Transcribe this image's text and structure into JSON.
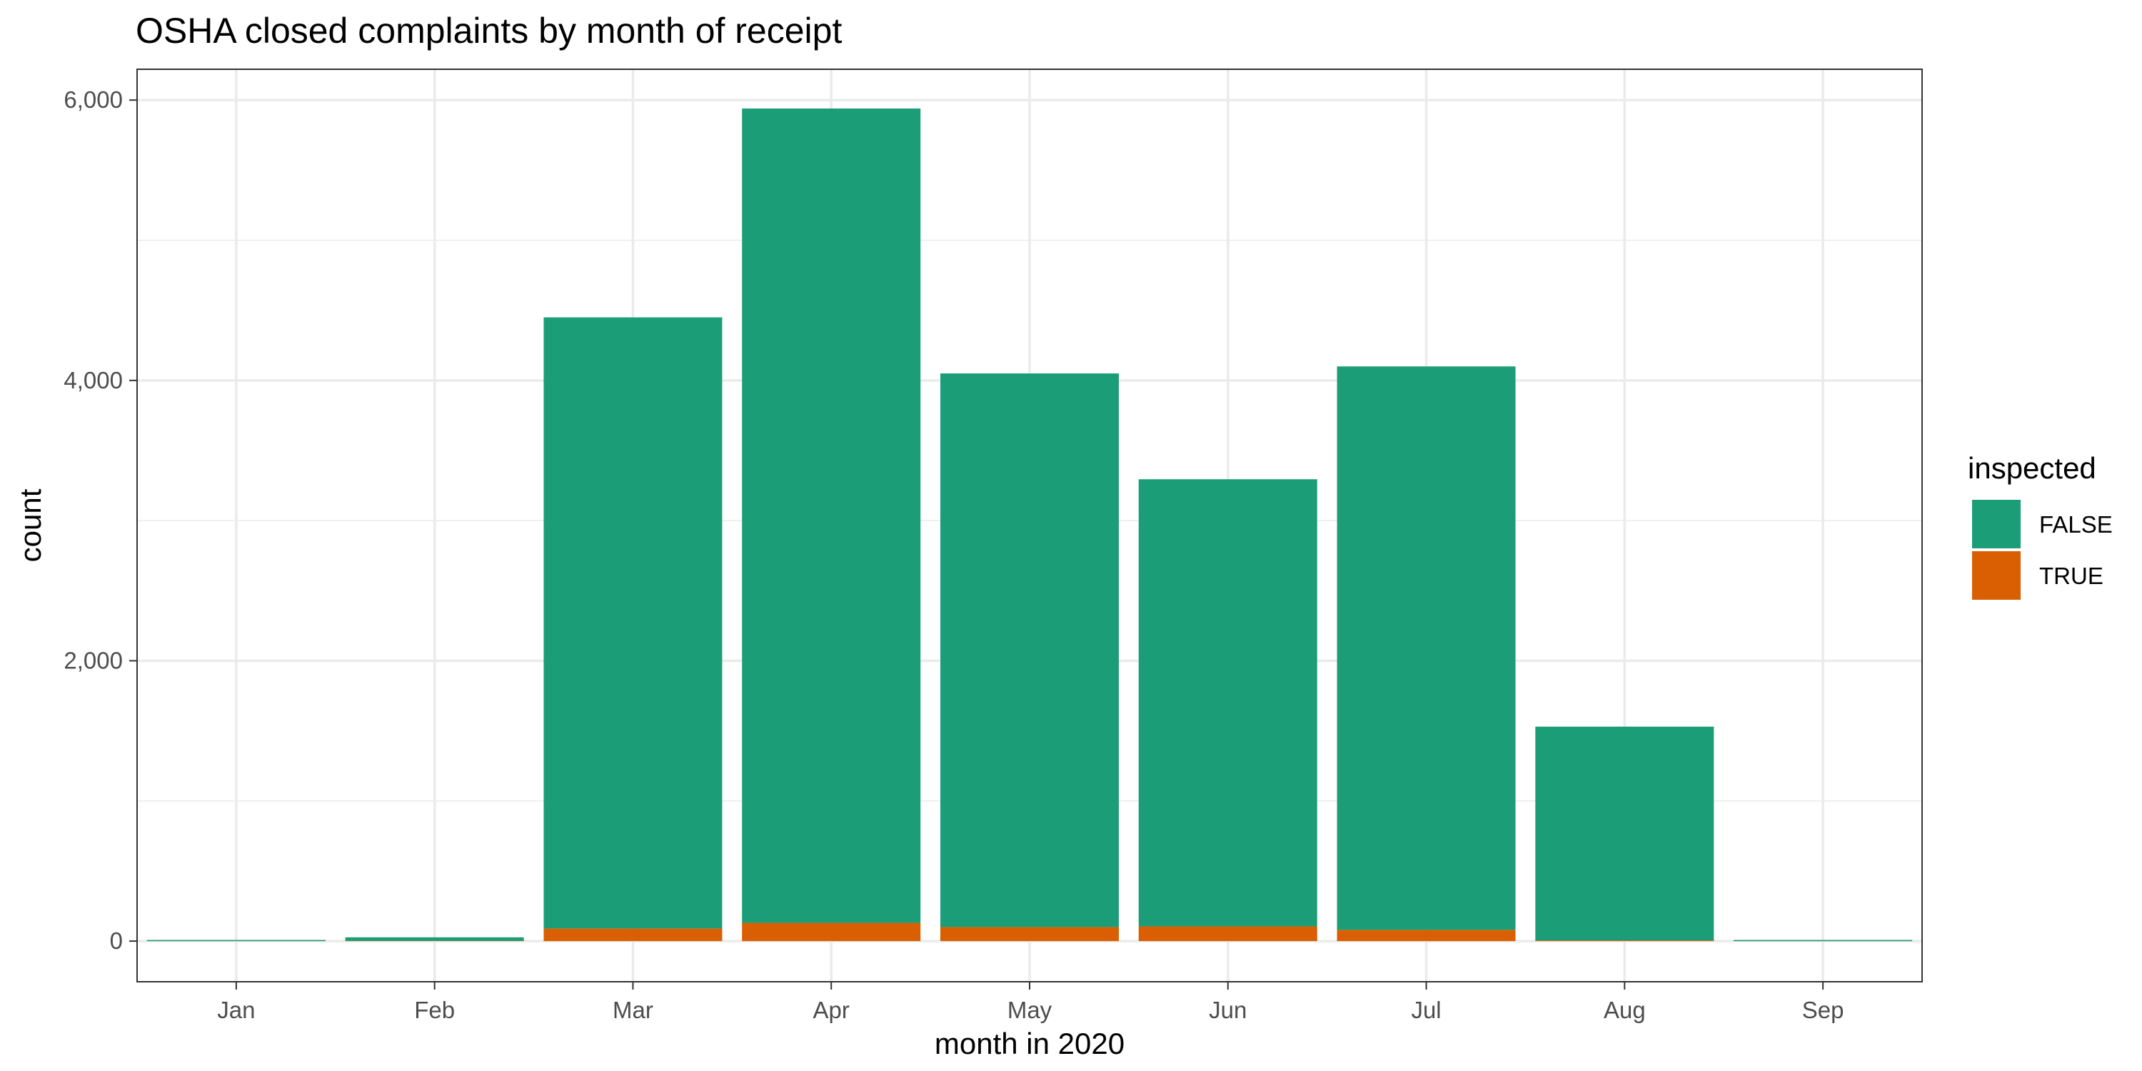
{
  "chart_data": {
    "type": "bar",
    "stacked": true,
    "title": "OSHA closed complaints by month of receipt",
    "xlabel": "month in 2020",
    "ylabel": "count",
    "categories": [
      "Jan",
      "Feb",
      "Mar",
      "Apr",
      "May",
      "Jun",
      "Jul",
      "Aug",
      "Sep"
    ],
    "series": [
      {
        "name": "FALSE",
        "color": "#1b9e77",
        "values": [
          5,
          25,
          4360,
          5810,
          3950,
          3190,
          4020,
          1525,
          5
        ]
      },
      {
        "name": "TRUE",
        "color": "#d95f02",
        "values": [
          0,
          2,
          90,
          130,
          100,
          105,
          80,
          5,
          0
        ]
      }
    ],
    "ylim": [
      -290,
      6220
    ],
    "yticks": [
      0,
      2000,
      4000,
      6000
    ],
    "ytick_labels": [
      "0",
      "2,000",
      "4,000",
      "6,000"
    ],
    "grid": true,
    "legend": {
      "title": "inspected",
      "position": "right"
    }
  }
}
